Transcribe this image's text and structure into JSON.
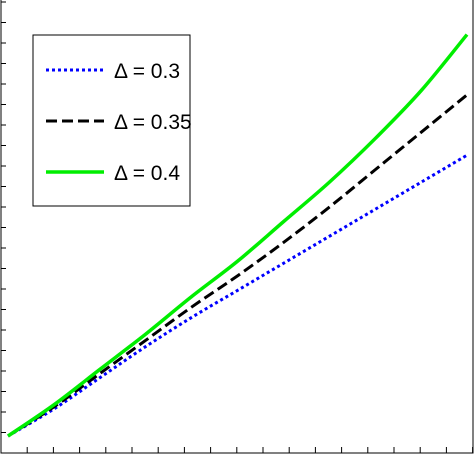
{
  "chart_data": {
    "type": "line",
    "title": "",
    "xlabel": "",
    "ylabel": "",
    "xlim": [
      0,
      1
    ],
    "ylim": [
      0,
      1
    ],
    "grid": false,
    "legend_position": "top-left",
    "series": [
      {
        "name": "Δ = 0.3",
        "color": "#0000ff",
        "style": "dotted",
        "x": [
          0.0,
          0.1,
          0.2,
          0.3,
          0.4,
          0.5,
          0.6,
          0.7,
          0.8,
          0.9,
          1.0
        ],
        "y": [
          0.0,
          0.065,
          0.14,
          0.215,
          0.285,
          0.35,
          0.415,
          0.48,
          0.545,
          0.61,
          0.675
        ]
      },
      {
        "name": "Δ = 0.35",
        "color": "#000000",
        "style": "dashed",
        "x": [
          0.0,
          0.1,
          0.2,
          0.3,
          0.4,
          0.5,
          0.6,
          0.7,
          0.8,
          0.9,
          1.0
        ],
        "y": [
          0.0,
          0.07,
          0.15,
          0.23,
          0.31,
          0.385,
          0.465,
          0.55,
          0.64,
          0.73,
          0.82
        ]
      },
      {
        "name": "Δ = 0.4",
        "color": "#00ee00",
        "style": "solid",
        "x": [
          0.0,
          0.1,
          0.2,
          0.3,
          0.4,
          0.5,
          0.6,
          0.7,
          0.8,
          0.9,
          1.0
        ],
        "y": [
          0.0,
          0.075,
          0.16,
          0.245,
          0.335,
          0.42,
          0.515,
          0.61,
          0.715,
          0.83,
          0.965
        ]
      }
    ]
  }
}
